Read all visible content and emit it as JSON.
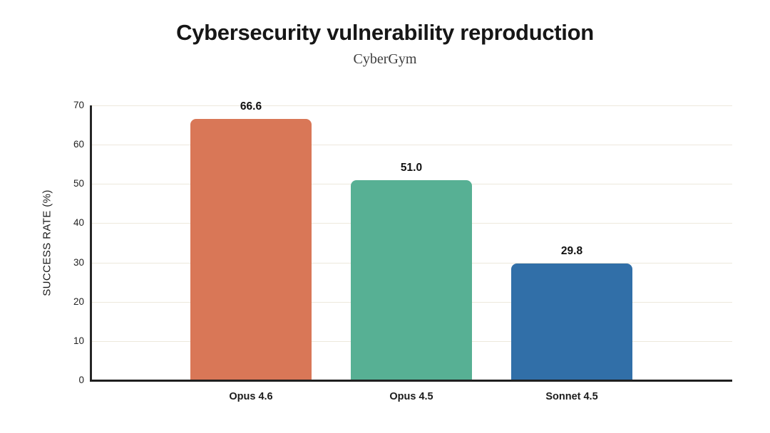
{
  "chart": {
    "title": "Cybersecurity vulnerability reproduction",
    "subtitle": "CyberGym"
  },
  "chart_data": {
    "type": "bar",
    "title": "Cybersecurity vulnerability reproduction",
    "subtitle": "CyberGym",
    "categories": [
      "Opus 4.6",
      "Opus 4.5",
      "Sonnet 4.5"
    ],
    "values": [
      66.6,
      51.0,
      29.8
    ],
    "value_labels": [
      "66.6",
      "51.0",
      "29.8"
    ],
    "bar_colors": [
      "#d97757",
      "#57b094",
      "#316fa8"
    ],
    "xlabel": "",
    "ylabel": "SUCCESS RATE (%)",
    "ylim": [
      0,
      70
    ],
    "yticks": [
      0,
      10,
      20,
      30,
      40,
      50,
      60,
      70
    ],
    "grid": "horizontal",
    "gridline_color": "#ede8dc",
    "axis_color": "#1f1f1f",
    "legend": "none",
    "background_color": "#ffffff"
  }
}
